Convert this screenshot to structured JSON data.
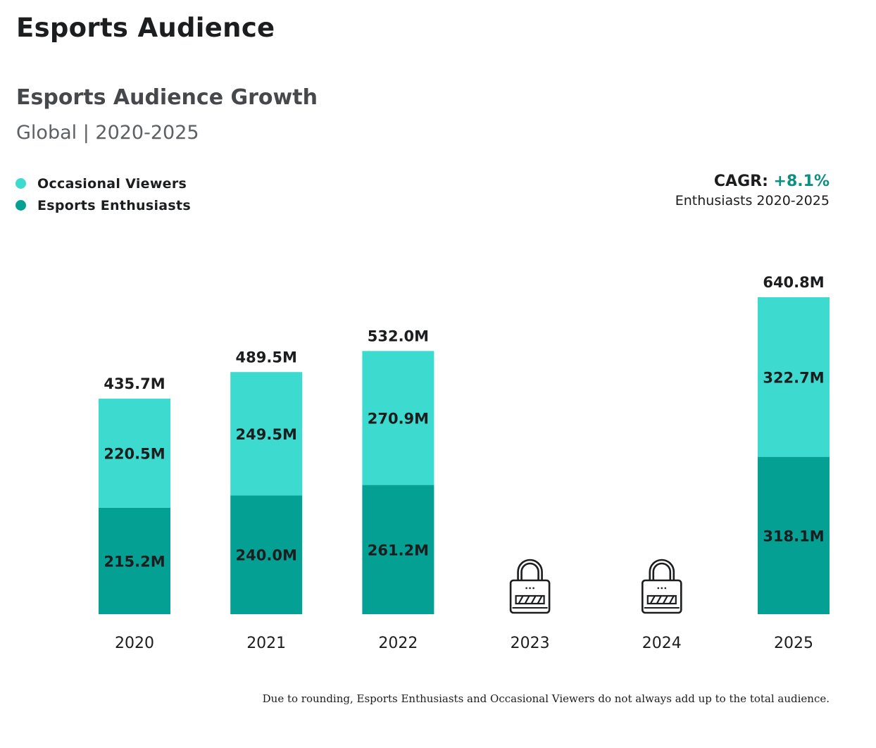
{
  "page": {
    "title": "Esports Audience"
  },
  "chart_header": {
    "title": "Esports Audience Growth",
    "subtitle": "Global | 2020-2025"
  },
  "legend": [
    {
      "label": "Occasional Viewers",
      "color": "#3ddbcf"
    },
    {
      "label": "Esports Enthusiasts",
      "color": "#05a094"
    }
  ],
  "cagr": {
    "label": "CAGR:",
    "value": "+8.1%",
    "note": "Enthusiasts 2020-2025",
    "value_color": "#0d8f82"
  },
  "footnote": "Due to rounding, Esports Enthusiasts and Occasional Viewers do not always add up to the total audience.",
  "chart_data": {
    "type": "bar",
    "stacked": true,
    "title": "Esports Audience Growth",
    "subtitle": "Global | 2020-2025",
    "xlabel": "",
    "ylabel": "",
    "unit": "M",
    "categories": [
      "2020",
      "2021",
      "2022",
      "2023",
      "2024",
      "2025"
    ],
    "locked": [
      false,
      false,
      false,
      true,
      true,
      false
    ],
    "series": [
      {
        "name": "Esports Enthusiasts",
        "color": "#05a094",
        "values": [
          215.2,
          240.0,
          261.2,
          null,
          null,
          318.1
        ],
        "labels": [
          "215.2M",
          "240.0M",
          "261.2M",
          null,
          null,
          "318.1M"
        ]
      },
      {
        "name": "Occasional Viewers",
        "color": "#3ddbcf",
        "values": [
          220.5,
          249.5,
          270.9,
          null,
          null,
          322.7
        ],
        "labels": [
          "220.5M",
          "249.5M",
          "270.9M",
          null,
          null,
          "322.7M"
        ]
      }
    ],
    "totals": [
      435.7,
      489.5,
      532.0,
      null,
      null,
      640.8
    ],
    "total_labels": [
      "435.7M",
      "489.5M",
      "532.0M",
      null,
      null,
      "640.8M"
    ],
    "ylim": [
      0,
      640.8
    ],
    "grid": false,
    "legend_position": "top-left",
    "locked_icon": "padlock-icon"
  }
}
